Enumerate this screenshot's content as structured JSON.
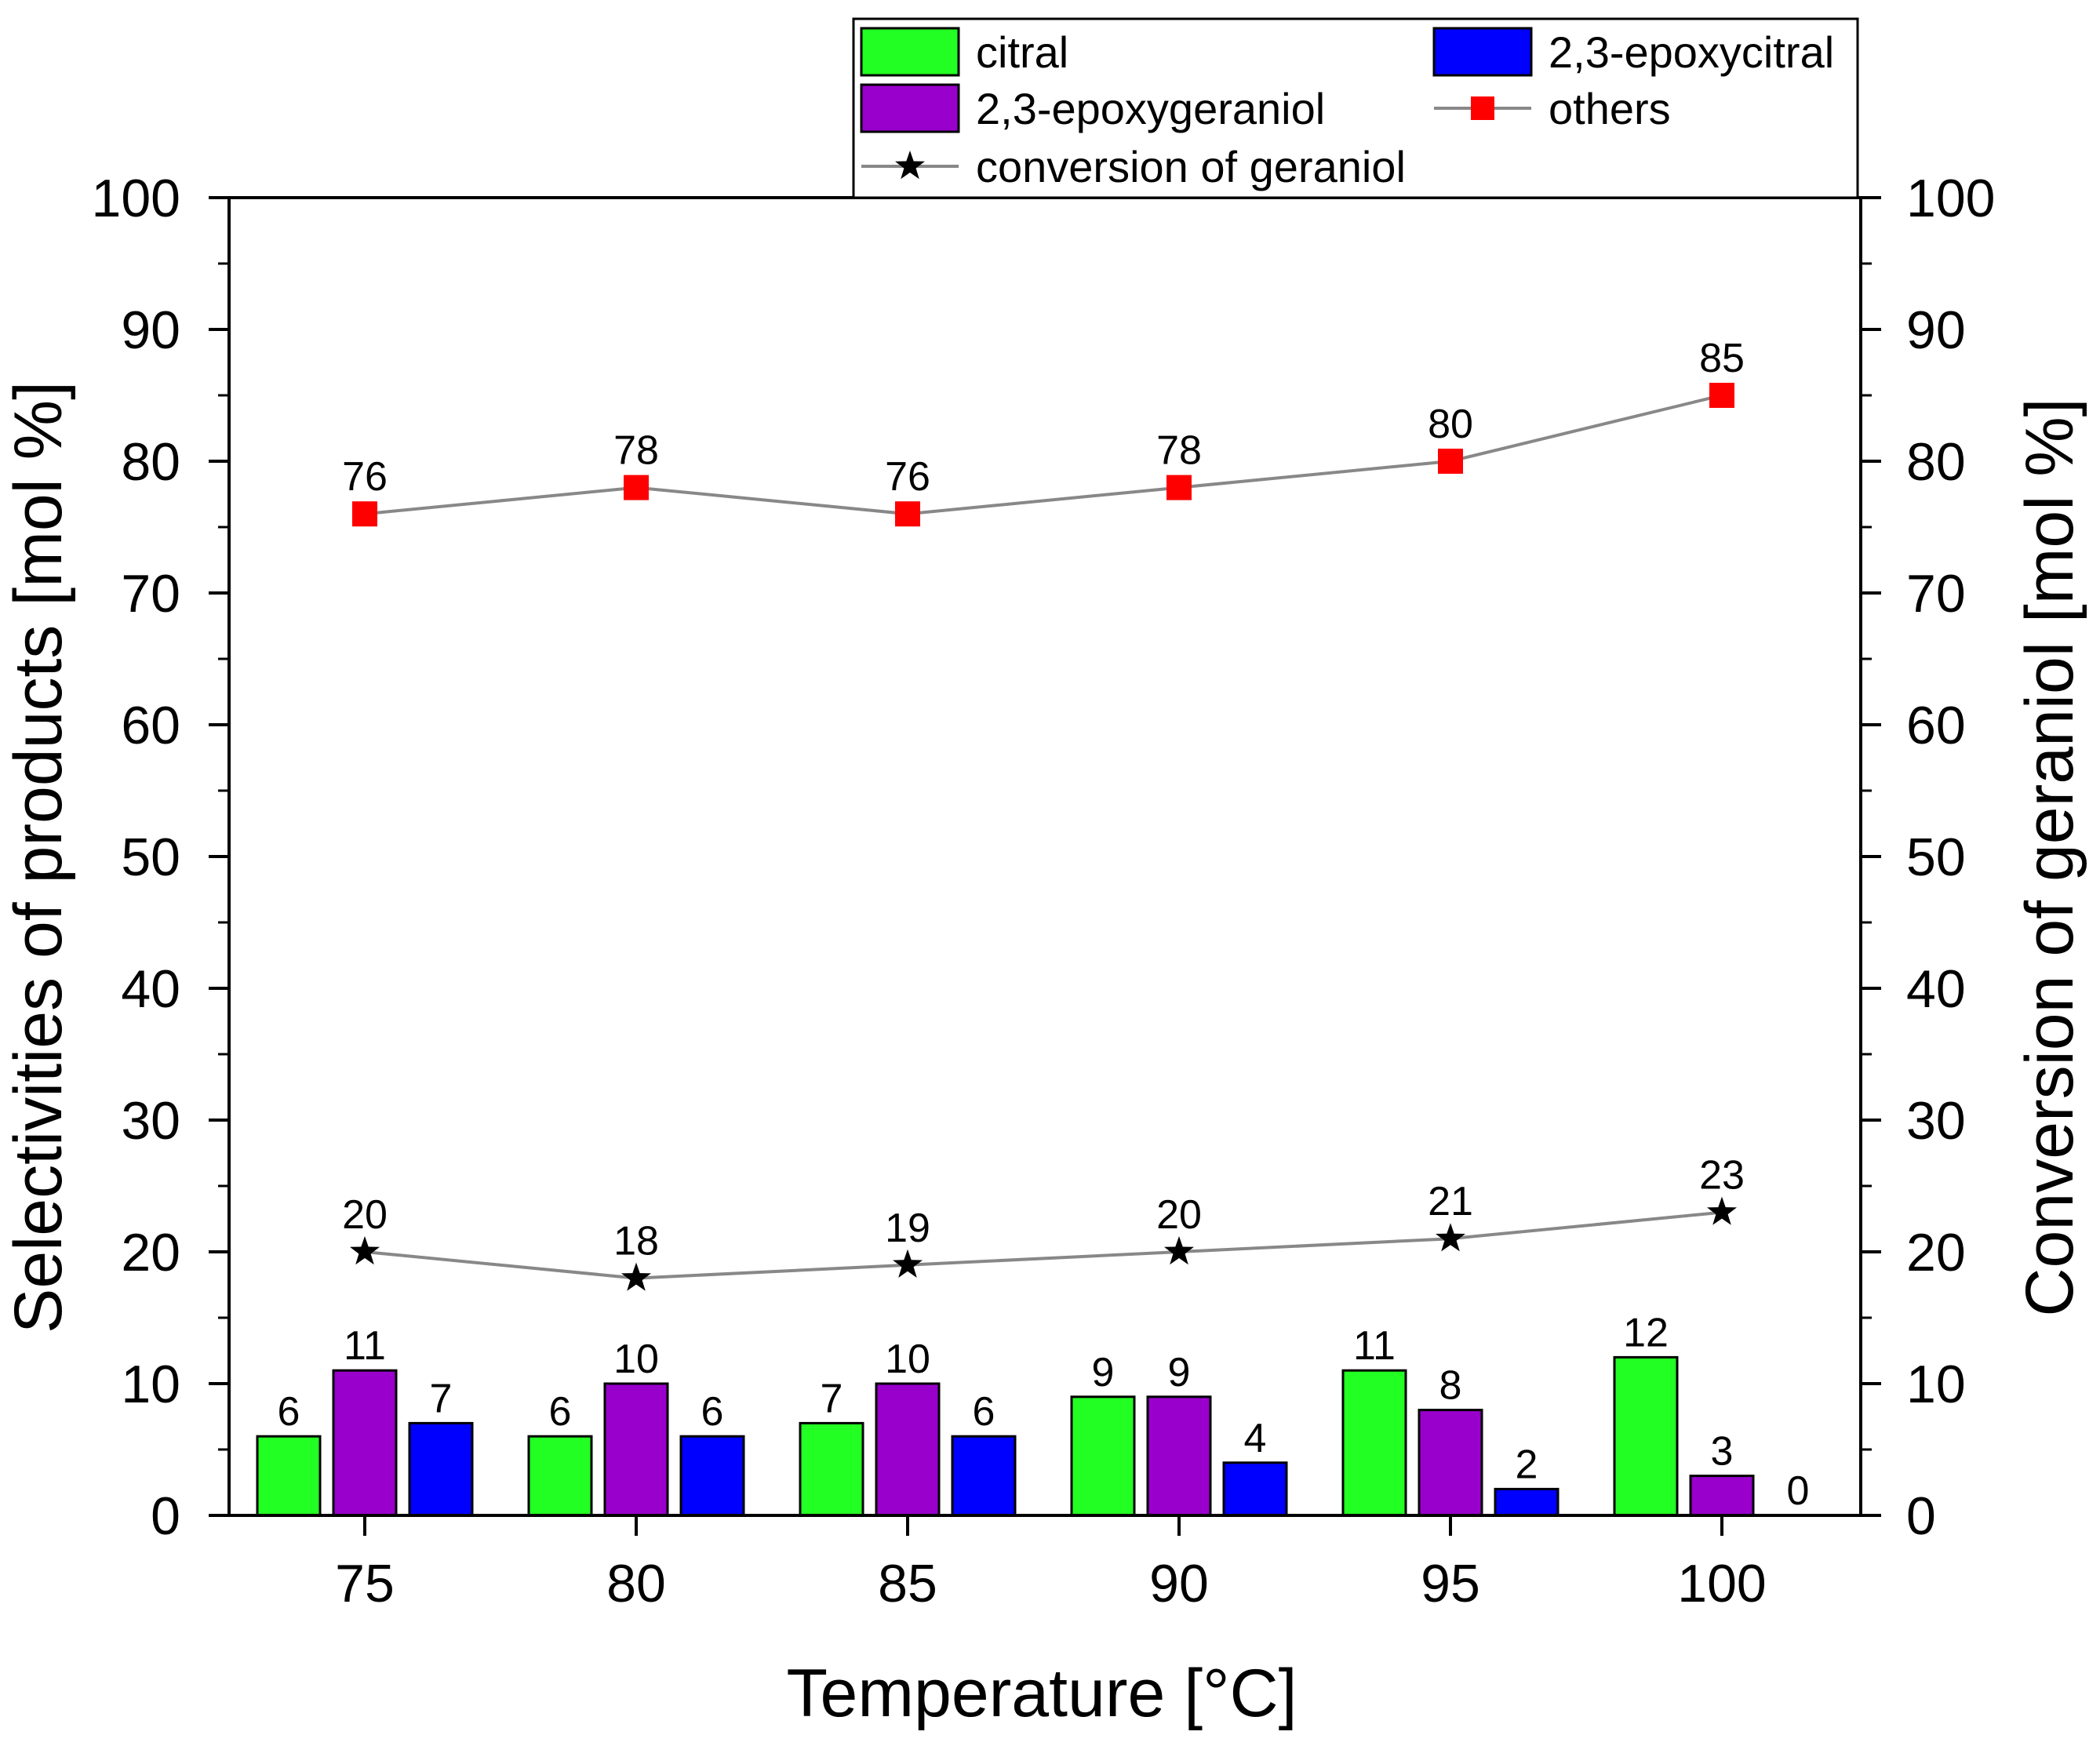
{
  "chart_data": {
    "type": "bar+line",
    "xlabel": "Temperature [°C]",
    "ylabel_left": "Selectivities of products [mol %]",
    "ylabel_right": "Conversion of geraniol [mol %]",
    "categories": [
      "75",
      "80",
      "85",
      "90",
      "95",
      "100"
    ],
    "ylim": [
      0,
      100
    ],
    "yticks": [
      "0",
      "10",
      "20",
      "30",
      "40",
      "50",
      "60",
      "70",
      "80",
      "90",
      "100"
    ],
    "bar_series": [
      {
        "name": "citral",
        "color": "#22ff22",
        "values": [
          6,
          6,
          7,
          9,
          11,
          12
        ]
      },
      {
        "name": "2,3-epoxygeraniol",
        "color": "#9900cc",
        "values": [
          11,
          10,
          10,
          9,
          8,
          3
        ]
      },
      {
        "name": "2,3-epoxycitral",
        "color": "#0000ff",
        "values": [
          7,
          6,
          6,
          4,
          2,
          0
        ]
      }
    ],
    "line_series": [
      {
        "name": "others",
        "marker": "square",
        "marker_color": "#ff0000",
        "line_color": "#888888",
        "values": [
          76,
          78,
          76,
          78,
          80,
          85
        ]
      },
      {
        "name": "conversion of geraniol",
        "marker": "star",
        "marker_color": "#000000",
        "line_color": "#888888",
        "values": [
          20,
          18,
          19,
          20,
          21,
          23
        ]
      }
    ],
    "legend": [
      "citral",
      "2,3-epoxycitral",
      "2,3-epoxygeraniol",
      "others",
      "conversion of geraniol"
    ],
    "legend_placement": "top"
  }
}
